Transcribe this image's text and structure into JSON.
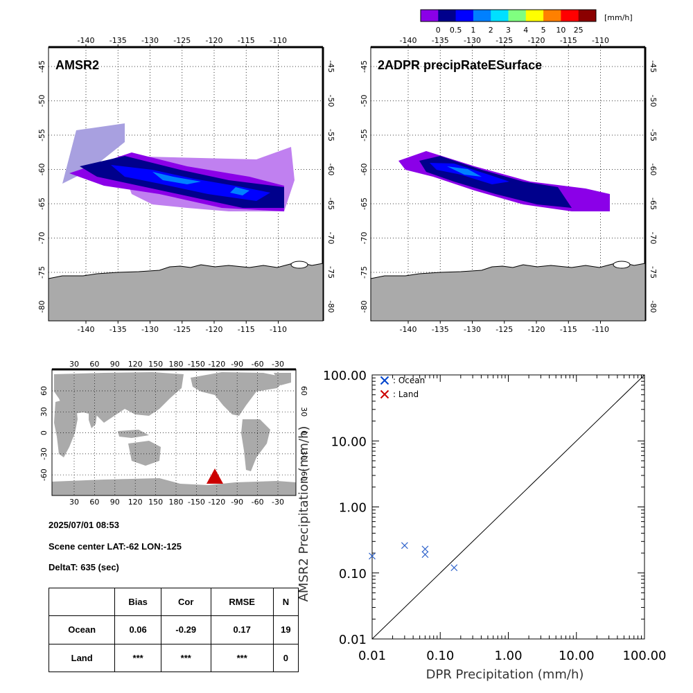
{
  "colorbar": {
    "unit": "[mm/h]",
    "labels": [
      "0",
      "0.5",
      "1",
      "2",
      "3",
      "4",
      "5",
      "10",
      "25"
    ],
    "colors": [
      "#8B00E8",
      "#00008C",
      "#0000FF",
      "#0080FF",
      "#00E0FF",
      "#80FF80",
      "#FFFF00",
      "#FF8000",
      "#FF0000",
      "#8B0000"
    ]
  },
  "maps": {
    "lon_ticks": [
      "-140",
      "-135",
      "-130",
      "-125",
      "-120",
      "-115",
      "-110"
    ],
    "lat_ticks": [
      "-45",
      "-50",
      "-55",
      "-60",
      "-65",
      "-70",
      "-75",
      "-80"
    ],
    "left_title": "AMSR2",
    "right_title": "2ADPR precipRateESurface"
  },
  "world_map": {
    "lon_ticks": [
      "30",
      "60",
      "90",
      "120",
      "150",
      "180",
      "-150",
      "-120",
      "-90",
      "-60",
      "-30"
    ],
    "lat_ticks_left": [
      "60",
      "30",
      "0",
      "-30",
      "-60"
    ],
    "lat_ticks_right": [
      "60",
      "30",
      "0",
      "-30",
      "-60"
    ],
    "marker_color": "#CC0000"
  },
  "info": {
    "datetime": "2025/07/01 08:53",
    "scene_center": "Scene center LAT:-62   LON:-125",
    "deltat": "DeltaT:  635 (sec)"
  },
  "stats_table": {
    "headers": [
      "",
      "Bias",
      "Cor",
      "RMSE",
      "N"
    ],
    "rows": [
      [
        "Ocean",
        "0.06",
        "-0.29",
        "0.17",
        "19"
      ],
      [
        "Land",
        "***",
        "***",
        "***",
        "0"
      ]
    ]
  },
  "chart_data": {
    "type": "scatter",
    "xlabel": "DPR Precipitation (mm/h)",
    "ylabel": "AMSR2 Precipitation (mm/h)",
    "x_scale": "log",
    "y_scale": "log",
    "xlim": [
      0.01,
      100
    ],
    "ylim": [
      0.01,
      100
    ],
    "x_tick_labels": [
      "0.01",
      "0.10",
      "1.00",
      "10.00",
      "100.00"
    ],
    "y_tick_labels": [
      "0.01",
      "0.10",
      "1.00",
      "10.00",
      "100.00"
    ],
    "legend_placement": "top-left",
    "legend": [
      {
        "label": ": Ocean",
        "color": "#0044CC"
      },
      {
        "label": ": Land",
        "color": "#CC0000"
      }
    ],
    "series": [
      {
        "name": "Ocean",
        "color": "#3366CC",
        "points": [
          [
            0.01,
            0.18
          ],
          [
            0.03,
            0.26
          ],
          [
            0.06,
            0.23
          ],
          [
            0.06,
            0.19
          ],
          [
            0.16,
            0.12
          ]
        ]
      },
      {
        "name": "Land",
        "color": "#CC0000",
        "points": []
      }
    ],
    "reference_line": "y=x"
  }
}
